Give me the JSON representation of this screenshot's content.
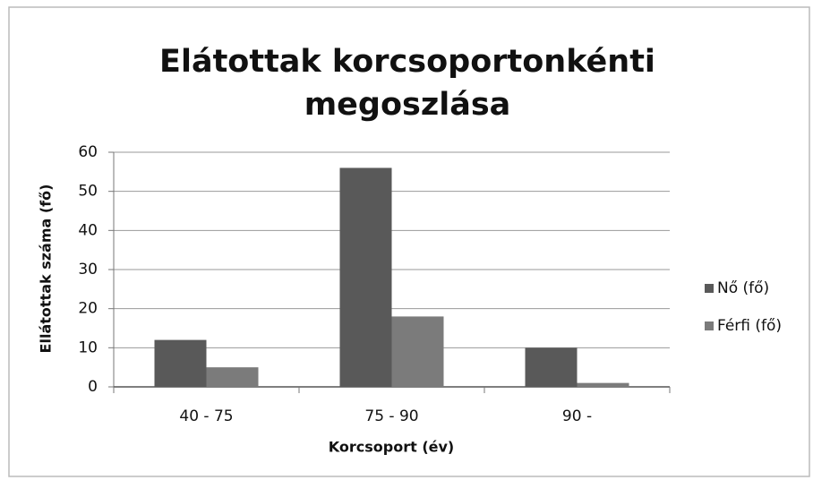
{
  "chart_data": {
    "type": "bar",
    "title": [
      "Elátottak korcsoportonkénti",
      "megoszlása"
    ],
    "x_label": "Korcsoport (év)",
    "y_label": "Ellátottak száma (fő)",
    "categories": [
      "40 - 75",
      "75 - 90",
      "90 -"
    ],
    "series": [
      {
        "name": "Nő (fő)",
        "color": "#595959",
        "values": [
          12,
          56,
          10
        ]
      },
      {
        "name": "Férfi (fő)",
        "color": "#7b7b7b",
        "values": [
          5,
          18,
          1
        ]
      }
    ],
    "ylim": [
      0,
      60
    ],
    "yticks": [
      0,
      10,
      20,
      30,
      40,
      50,
      60
    ],
    "grid": true,
    "legend": "right"
  }
}
